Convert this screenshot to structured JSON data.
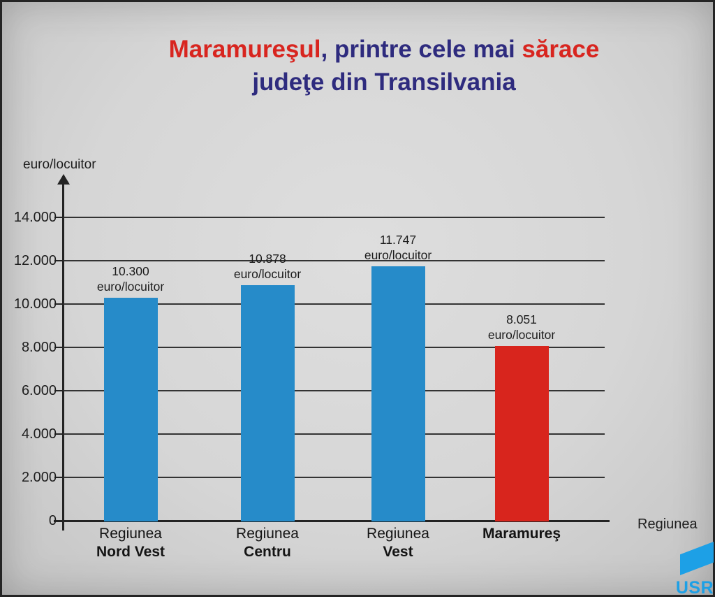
{
  "title": {
    "part1": "Maramureşul",
    "part2": ", printre cele mai ",
    "part3": "sărace",
    "line2": "judeţe din Transilvania",
    "navy_color": "#2e2b7e",
    "red_color": "#d8251f"
  },
  "logo": {
    "text": "USR",
    "color": "#1da0e6",
    "flag_icon": "usr-flag-parallelogram"
  },
  "chart_data": {
    "type": "bar",
    "title": "Maramureşul, printre cele mai sărace judeţe din Transilvania",
    "xlabel": "Regiunea",
    "ylabel": "euro/locuitor",
    "unit": "euro/locuitor",
    "categories": [
      "Regiunea Nord Vest",
      "Regiunea Centru",
      "Regiunea Vest",
      "Maramureş"
    ],
    "values": [
      10300,
      10878,
      11747,
      8051
    ],
    "ylim": [
      0,
      15000
    ],
    "grid": true,
    "legend": "none",
    "yticks": [
      {
        "value": 0,
        "label": "0"
      },
      {
        "value": 2000,
        "label": "2.000"
      },
      {
        "value": 4000,
        "label": "4.000"
      },
      {
        "value": 6000,
        "label": "6.000"
      },
      {
        "value": 8000,
        "label": "8.000"
      },
      {
        "value": 10000,
        "label": "10.000"
      },
      {
        "value": 12000,
        "label": "12.000"
      },
      {
        "value": 14000,
        "label": "14.000"
      }
    ],
    "bars": [
      {
        "value": 10300,
        "value_label": "10.300",
        "unit_label": "euro/locuitor",
        "color": "#268bc9",
        "category_lines": [
          {
            "text": "Regiunea",
            "bold": false
          },
          {
            "text": "Nord Vest",
            "bold": true
          }
        ]
      },
      {
        "value": 10878,
        "value_label": "10.878",
        "unit_label": "euro/locuitor",
        "color": "#268bc9",
        "category_lines": [
          {
            "text": "Regiunea",
            "bold": false
          },
          {
            "text": "Centru",
            "bold": true
          }
        ]
      },
      {
        "value": 11747,
        "value_label": "11.747",
        "unit_label": "euro/locuitor",
        "color": "#268bc9",
        "category_lines": [
          {
            "text": "Regiunea",
            "bold": false
          },
          {
            "text": "Vest",
            "bold": true
          }
        ]
      },
      {
        "value": 8051,
        "value_label": "8.051",
        "unit_label": "euro/locuitor",
        "color": "#d8251d",
        "category_lines": [
          {
            "text": "Maramureş",
            "bold": true
          }
        ]
      }
    ]
  }
}
